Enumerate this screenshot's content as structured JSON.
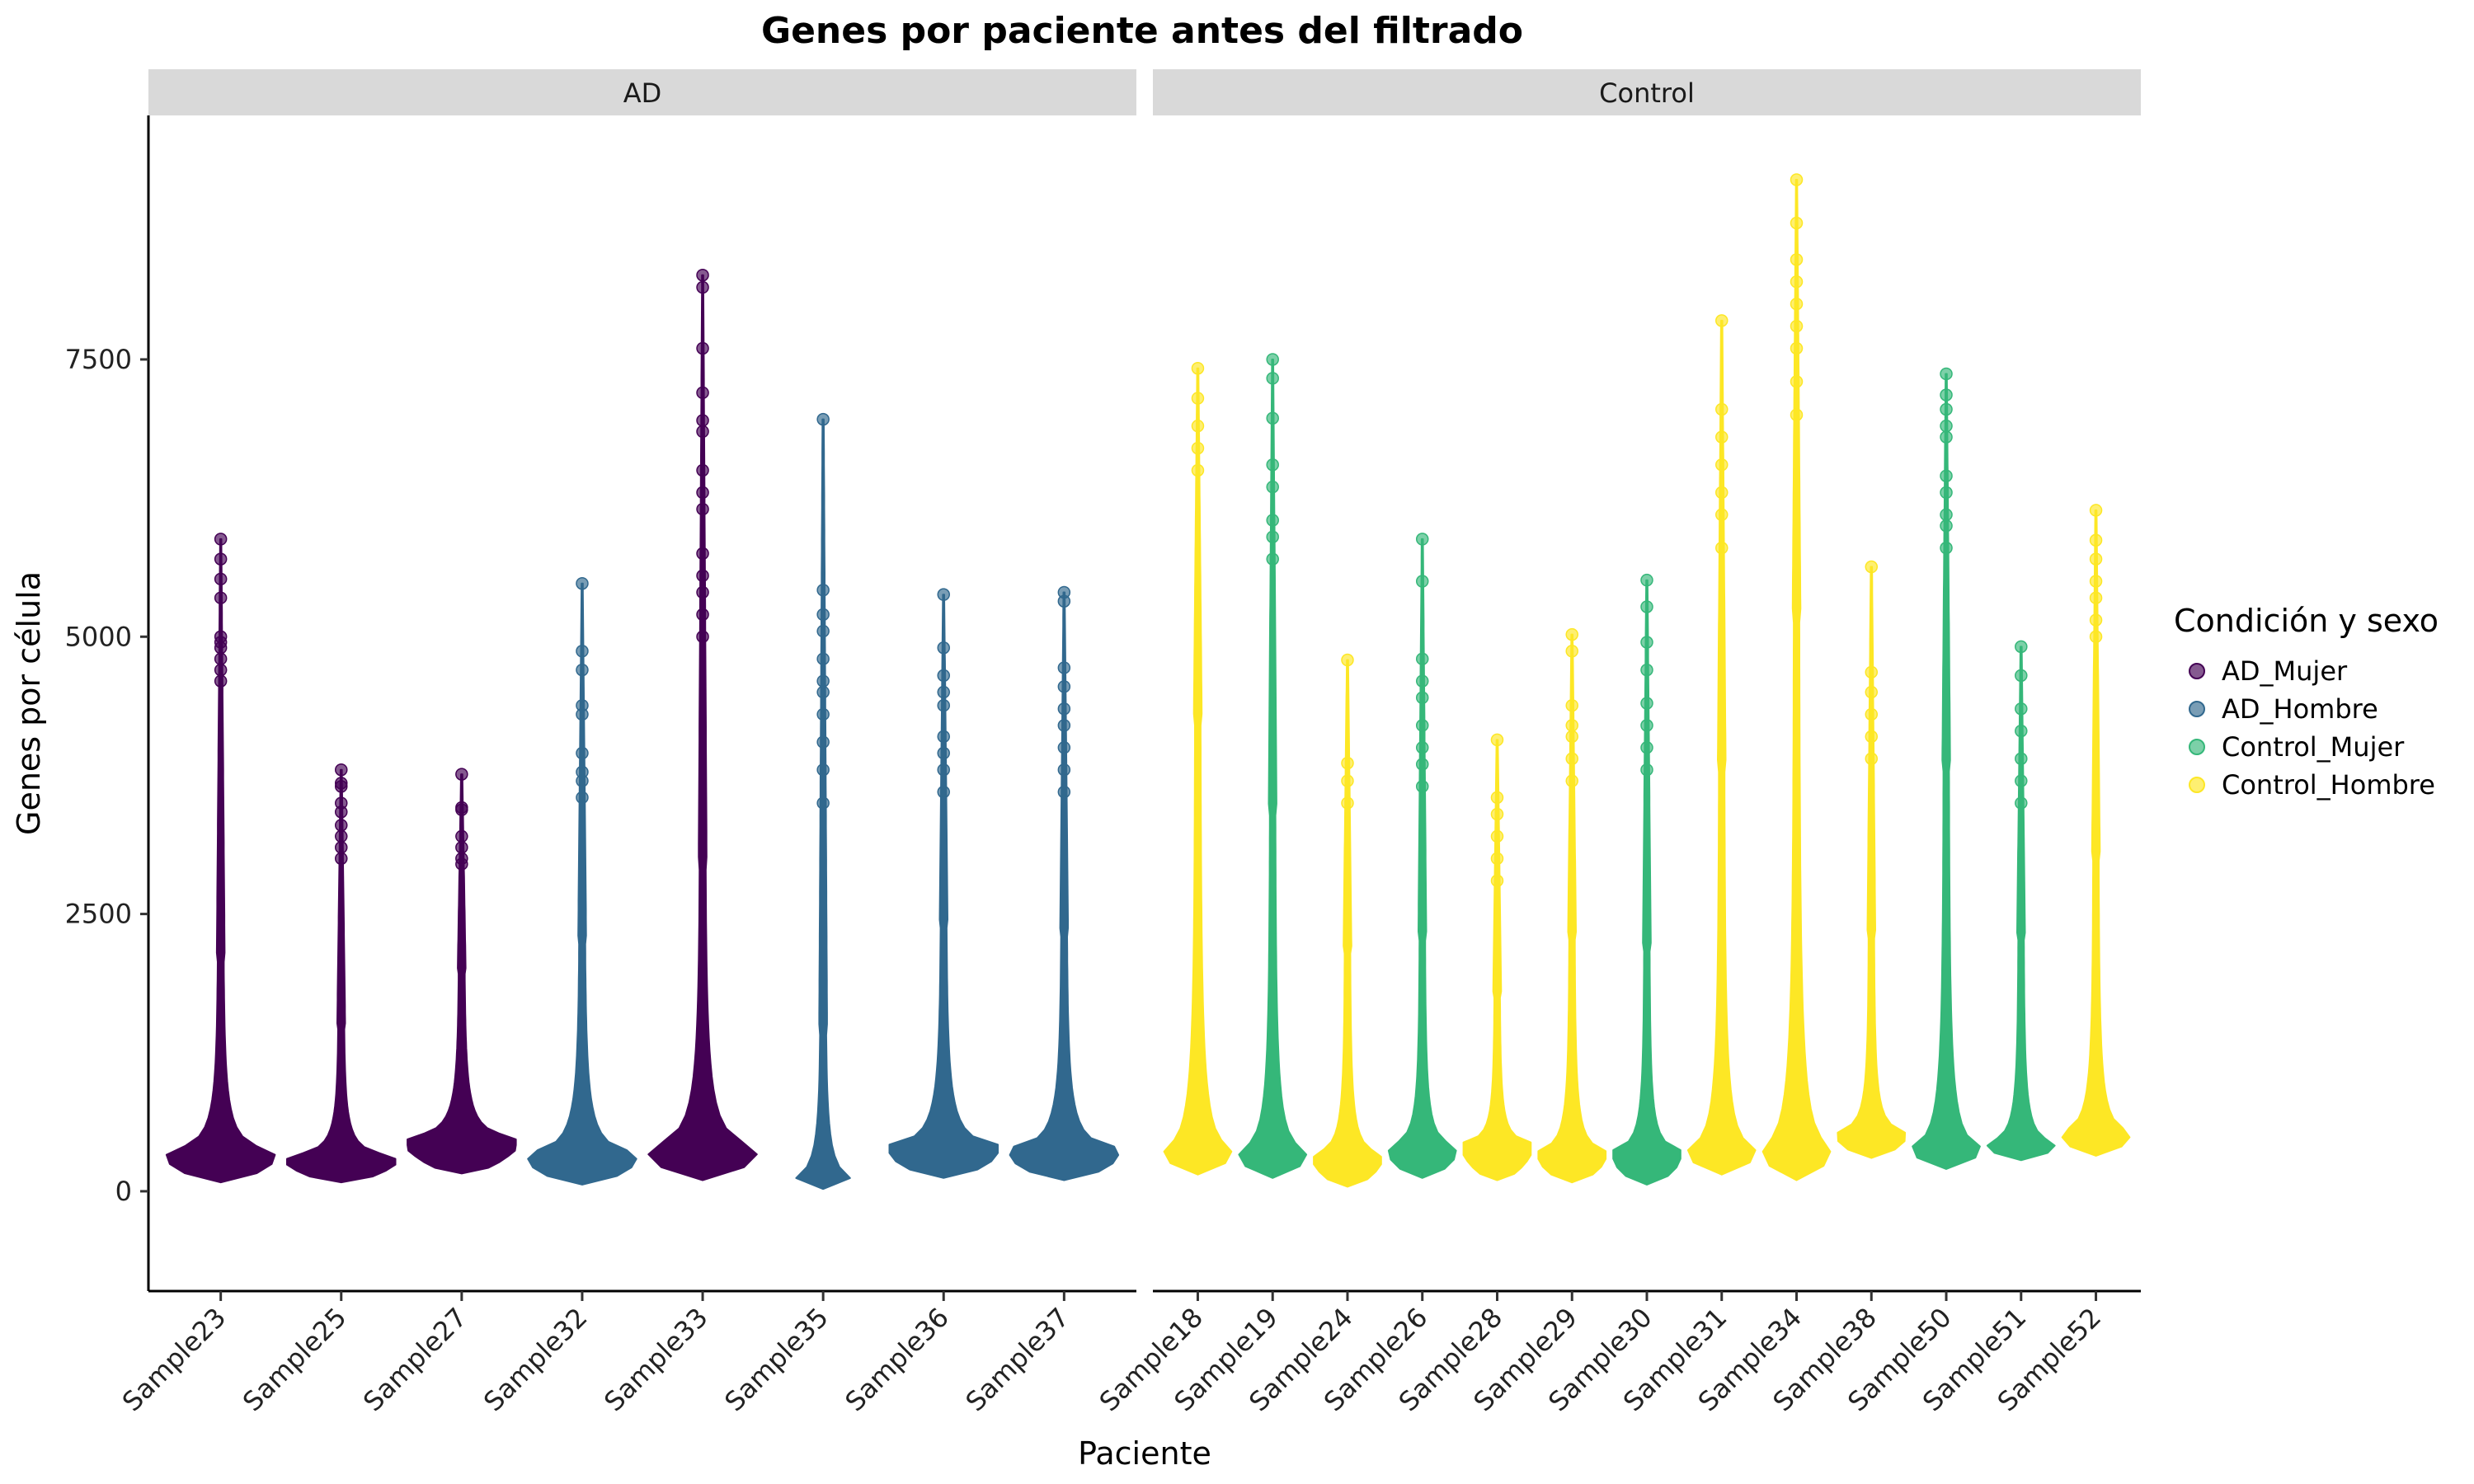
{
  "chart_data": {
    "type": "violin",
    "title": "Genes por paciente antes del filtrado",
    "xlabel": "Paciente",
    "ylabel": "Genes por célula",
    "ylim": [
      -900,
      9700
    ],
    "yticks": [
      0,
      2500,
      5000,
      7500
    ],
    "grid": false,
    "legend": {
      "title": "Condición y sexo",
      "placement": "right",
      "entries": [
        "AD_Mujer",
        "AD_Hombre",
        "Control_Mujer",
        "Control_Hombre"
      ]
    },
    "colors": {
      "AD_Mujer": "#440154",
      "AD_Hombre": "#31688e",
      "Control_Mujer": "#35b779",
      "Control_Hombre": "#fde725"
    },
    "facets": [
      {
        "label": "AD",
        "samples": [
          {
            "name": "Sample23",
            "group": "AD_Mujer",
            "min": 80,
            "peak": 380,
            "q95": 2100,
            "max": 5880,
            "outliers": [
              4600,
              4700,
              4800,
              4900,
              4950,
              5000,
              5350,
              5520,
              5700,
              5880
            ]
          },
          {
            "name": "Sample25",
            "group": "AD_Mujer",
            "min": 80,
            "peak": 330,
            "q95": 1500,
            "max": 3800,
            "outliers": [
              3000,
              3100,
              3200,
              3300,
              3420,
              3500,
              3650,
              3680,
              3800
            ]
          },
          {
            "name": "Sample27",
            "group": "AD_Mujer",
            "min": 160,
            "peak": 500,
            "q95": 2000,
            "max": 3760,
            "outliers": [
              2950,
              3000,
              3100,
              3200,
              3440,
              3460,
              3760
            ]
          },
          {
            "name": "Sample32",
            "group": "AD_Hombre",
            "min": 60,
            "peak": 360,
            "q95": 2300,
            "max": 5480,
            "outliers": [
              3550,
              3700,
              3780,
              3950,
              4300,
              4380,
              4700,
              4870,
              5480
            ]
          },
          {
            "name": "Sample33",
            "group": "AD_Mujer",
            "min": 100,
            "peak": 420,
            "q95": 3000,
            "max": 8260,
            "outliers": [
              5000,
              5200,
              5400,
              5550,
              5750,
              6150,
              6300,
              6500,
              6850,
              6950,
              7200,
              7600,
              8150,
              8260
            ]
          },
          {
            "name": "Sample35",
            "group": "AD_Hombre",
            "min": 20,
            "peak": 60,
            "q95": 1500,
            "max": 6960,
            "outliers": [
              3500,
              3800,
              4050,
              4300,
              4500,
              4600,
              4800,
              5050,
              5200,
              5420,
              6960
            ]
          },
          {
            "name": "Sample36",
            "group": "AD_Hombre",
            "min": 120,
            "peak": 430,
            "q95": 2400,
            "max": 5380,
            "outliers": [
              3600,
              3800,
              3950,
              4100,
              4380,
              4500,
              4650,
              4900,
              5380
            ]
          },
          {
            "name": "Sample37",
            "group": "AD_Hombre",
            "min": 100,
            "peak": 400,
            "q95": 2300,
            "max": 5400,
            "outliers": [
              3600,
              3800,
              4000,
              4200,
              4350,
              4550,
              4720,
              5320,
              5400
            ]
          }
        ]
      },
      {
        "label": "Control",
        "samples": [
          {
            "name": "Sample18",
            "group": "Control_Hombre",
            "min": 150,
            "peak": 400,
            "q95": 4300,
            "max": 7420,
            "outliers": [
              6500,
              6700,
              6900,
              7150,
              7420
            ]
          },
          {
            "name": "Sample19",
            "group": "Control_Mujer",
            "min": 120,
            "peak": 380,
            "q95": 3400,
            "max": 7500,
            "outliers": [
              5700,
              5900,
              6050,
              6350,
              6550,
              6970,
              7330,
              7500
            ]
          },
          {
            "name": "Sample24",
            "group": "Control_Hombre",
            "min": 40,
            "peak": 350,
            "q95": 2200,
            "max": 4790,
            "outliers": [
              3500,
              3700,
              3860,
              4790
            ]
          },
          {
            "name": "Sample26",
            "group": "Control_Mujer",
            "min": 120,
            "peak": 420,
            "q95": 2300,
            "max": 5880,
            "outliers": [
              3650,
              3850,
              4000,
              4200,
              4450,
              4600,
              4800,
              5500,
              5880
            ]
          },
          {
            "name": "Sample28",
            "group": "Control_Hombre",
            "min": 100,
            "peak": 450,
            "q95": 1800,
            "max": 4070,
            "outliers": [
              2800,
              3000,
              3200,
              3400,
              3550,
              4070
            ]
          },
          {
            "name": "Sample29",
            "group": "Control_Hombre",
            "min": 80,
            "peak": 380,
            "q95": 2300,
            "max": 5020,
            "outliers": [
              3700,
              3900,
              4100,
              4200,
              4380,
              4870,
              5020
            ]
          },
          {
            "name": "Sample30",
            "group": "Control_Mujer",
            "min": 60,
            "peak": 380,
            "q95": 2200,
            "max": 5510,
            "outliers": [
              3800,
              4000,
              4200,
              4400,
              4700,
              4950,
              5270,
              5510
            ]
          },
          {
            "name": "Sample31",
            "group": "Control_Hombre",
            "min": 150,
            "peak": 400,
            "q95": 3800,
            "max": 7850,
            "outliers": [
              5800,
              6100,
              6300,
              6550,
              6800,
              7050,
              7850
            ]
          },
          {
            "name": "Sample34",
            "group": "Control_Hombre",
            "min": 100,
            "peak": 420,
            "q95": 5200,
            "max": 9120,
            "outliers": [
              7000,
              7300,
              7600,
              7800,
              8000,
              8200,
              8400,
              8730,
              9120
            ]
          },
          {
            "name": "Sample38",
            "group": "Control_Hombre",
            "min": 300,
            "peak": 550,
            "q95": 2300,
            "max": 5630,
            "outliers": [
              3900,
              4100,
              4300,
              4500,
              4680,
              5630
            ]
          },
          {
            "name": "Sample50",
            "group": "Control_Mujer",
            "min": 200,
            "peak": 420,
            "q95": 3800,
            "max": 7370,
            "outliers": [
              5800,
              6000,
              6100,
              6300,
              6450,
              6800,
              6900,
              7050,
              7180,
              7370
            ]
          },
          {
            "name": "Sample51",
            "group": "Control_Mujer",
            "min": 280,
            "peak": 450,
            "q95": 2300,
            "max": 4910,
            "outliers": [
              3500,
              3700,
              3900,
              4150,
              4350,
              4650,
              4910
            ]
          },
          {
            "name": "Sample52",
            "group": "Control_Hombre",
            "min": 320,
            "peak": 550,
            "q95": 3000,
            "max": 6140,
            "outliers": [
              5000,
              5150,
              5350,
              5500,
              5700,
              5870,
              6140
            ]
          }
        ]
      }
    ]
  }
}
